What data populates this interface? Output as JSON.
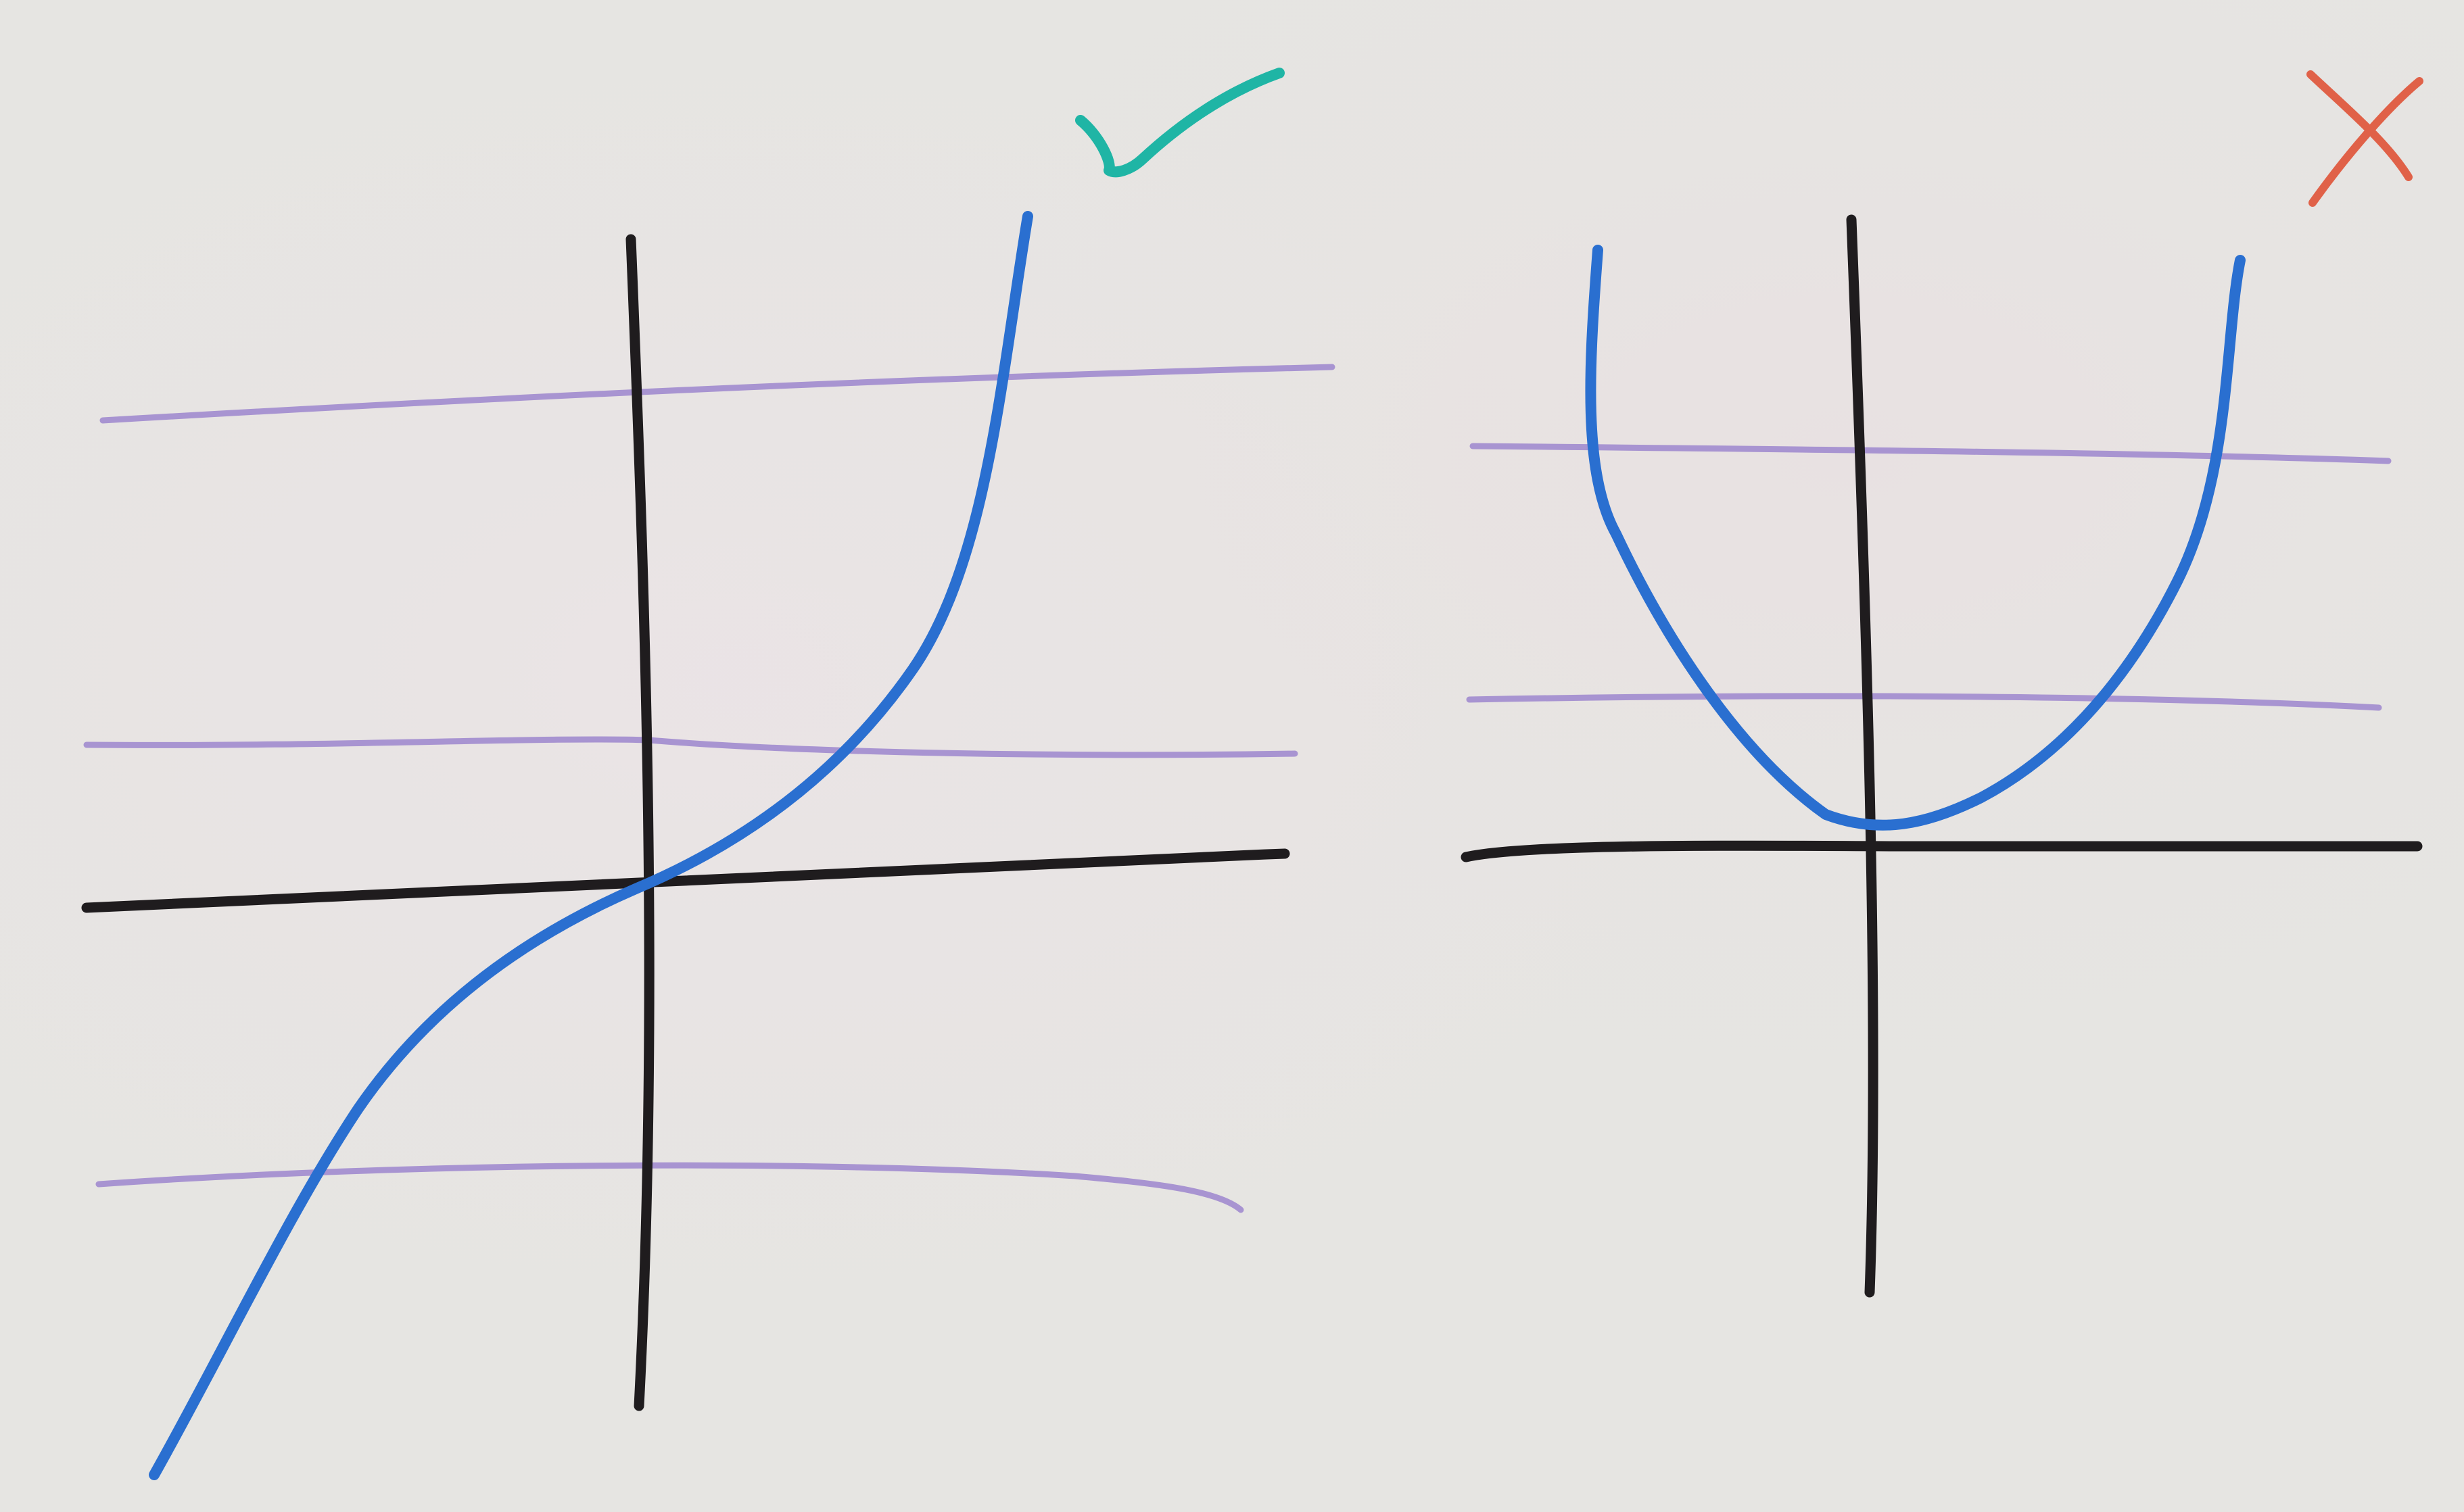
{
  "colors": {
    "board": "#e6e5e2",
    "axis": "#1f1c1e",
    "test_line": "#a48fd0",
    "curve": "#2a6fd0",
    "check_mark": "#1fb5a5",
    "cross_mark": "#e06148"
  },
  "icons": {
    "left_result": "check-mark-icon",
    "right_result": "cross-mark-icon"
  },
  "panels": [
    {
      "name": "left",
      "result": "pass",
      "horizontal_lines": 3,
      "intersections_per_line": 1
    },
    {
      "name": "right",
      "result": "fail",
      "horizontal_lines": 2,
      "intersections_per_line": 2
    }
  ]
}
